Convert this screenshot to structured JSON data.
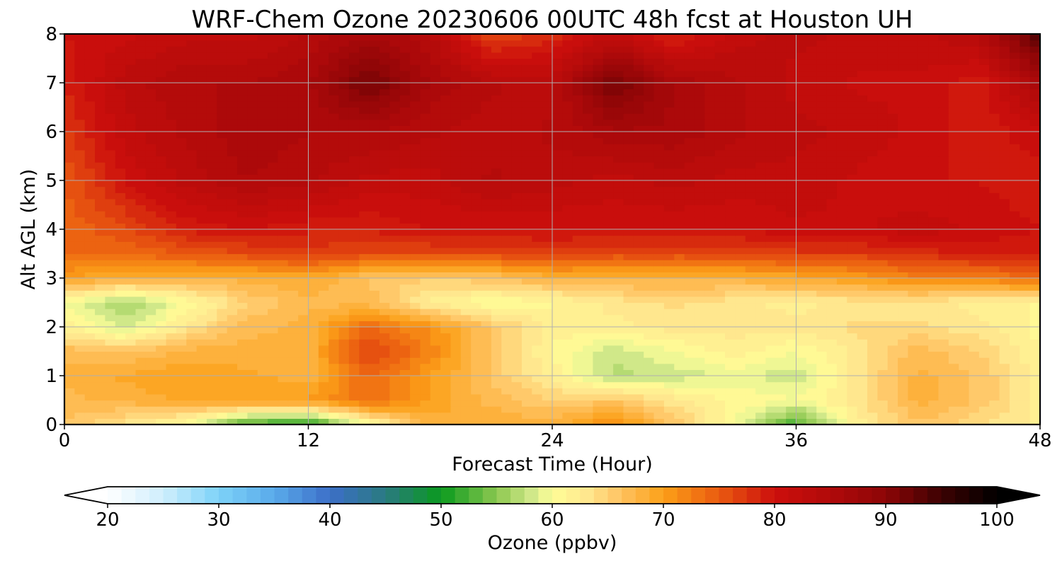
{
  "chart_data": {
    "type": "heatmap",
    "title": "WRF-Chem Ozone  20230606 00UTC 48h fcst at Houston UH",
    "xlabel": "Forecast Time (Hour)",
    "ylabel": "Alt AGL (km)",
    "xlim": [
      0,
      48
    ],
    "ylim": [
      0,
      8
    ],
    "xticks": [
      "0",
      "12",
      "24",
      "36",
      "48"
    ],
    "yticks": [
      "0",
      "1",
      "2",
      "3",
      "4",
      "5",
      "6",
      "7",
      "8"
    ],
    "grid": true,
    "x_hours": [
      0,
      3,
      6,
      9,
      12,
      15,
      18,
      21,
      24,
      27,
      30,
      33,
      36,
      39,
      42,
      45,
      48
    ],
    "y_km": [
      0,
      0.5,
      1,
      1.5,
      2,
      2.5,
      3,
      3.5,
      4,
      5,
      6,
      7,
      8
    ],
    "ozone_ppbv": [
      [
        66,
        63,
        60,
        52,
        50,
        60,
        68,
        69,
        68,
        72,
        66,
        60,
        52,
        62,
        66,
        64,
        62
      ],
      [
        67,
        68,
        69,
        70,
        70,
        74,
        70,
        67,
        65,
        66,
        63,
        61,
        60,
        63,
        68,
        66,
        62
      ],
      [
        68,
        69,
        70,
        69,
        68,
        74,
        70,
        66,
        62,
        57,
        58,
        59,
        58,
        63,
        68,
        66,
        62
      ],
      [
        67,
        66,
        68,
        68,
        68,
        77,
        72,
        66,
        61,
        58,
        60,
        62,
        60,
        63,
        67,
        65,
        61
      ],
      [
        62,
        58,
        63,
        67,
        68,
        74,
        71,
        66,
        62,
        62,
        63,
        63,
        63,
        64,
        64,
        63,
        61
      ],
      [
        60,
        56,
        60,
        65,
        67,
        67,
        62,
        60,
        61,
        63,
        64,
        63,
        62,
        63,
        63,
        62,
        61
      ],
      [
        70,
        68,
        68,
        68,
        69,
        66,
        65,
        66,
        68,
        68,
        68,
        68,
        69,
        70,
        72,
        72,
        74
      ],
      [
        74,
        74,
        75,
        76,
        77,
        76,
        76,
        76,
        77,
        76,
        76,
        76,
        77,
        77,
        78,
        79,
        79
      ],
      [
        74,
        76,
        79,
        80,
        79,
        79,
        80,
        80,
        80,
        80,
        80,
        80,
        81,
        81,
        82,
        81,
        80
      ],
      [
        75,
        80,
        83,
        85,
        84,
        82,
        82,
        84,
        83,
        82,
        83,
        82,
        82,
        81,
        80,
        80,
        79
      ],
      [
        77,
        82,
        84,
        86,
        85,
        85,
        84,
        83,
        84,
        86,
        86,
        84,
        83,
        82,
        81,
        79,
        81
      ],
      [
        79,
        83,
        85,
        85,
        86,
        92,
        86,
        84,
        83,
        92,
        86,
        84,
        82,
        81,
        81,
        79,
        86
      ],
      [
        80,
        81,
        82,
        82,
        84,
        86,
        84,
        76,
        78,
        82,
        78,
        82,
        83,
        82,
        82,
        84,
        94
      ]
    ],
    "colorbar": {
      "label": "Ozone  (ppbv)",
      "min": 20,
      "max": 100,
      "step": 1.25,
      "extend": "both",
      "ticks": [
        "20",
        "30",
        "40",
        "50",
        "60",
        "70",
        "80",
        "90",
        "100"
      ],
      "tick_values": [
        20,
        30,
        40,
        50,
        60,
        70,
        80,
        90,
        100
      ],
      "color_stops": [
        [
          20,
          "#ffffff"
        ],
        [
          25,
          "#cfeefd"
        ],
        [
          30,
          "#7dd2f8"
        ],
        [
          35,
          "#5aaaea"
        ],
        [
          40,
          "#3c6ec8"
        ],
        [
          45,
          "#2a7a80"
        ],
        [
          50,
          "#0a9a1e"
        ],
        [
          55,
          "#8cc850"
        ],
        [
          58.5,
          "#d8ec90"
        ],
        [
          60,
          "#fffe96"
        ],
        [
          63,
          "#ffe890"
        ],
        [
          66,
          "#ffc464"
        ],
        [
          70,
          "#fca018"
        ],
        [
          75,
          "#ea5a10"
        ],
        [
          80,
          "#cc0f0c"
        ],
        [
          85,
          "#b00a0a"
        ],
        [
          90,
          "#8c0506"
        ],
        [
          95,
          "#3c0202"
        ],
        [
          100,
          "#000000"
        ]
      ]
    }
  }
}
